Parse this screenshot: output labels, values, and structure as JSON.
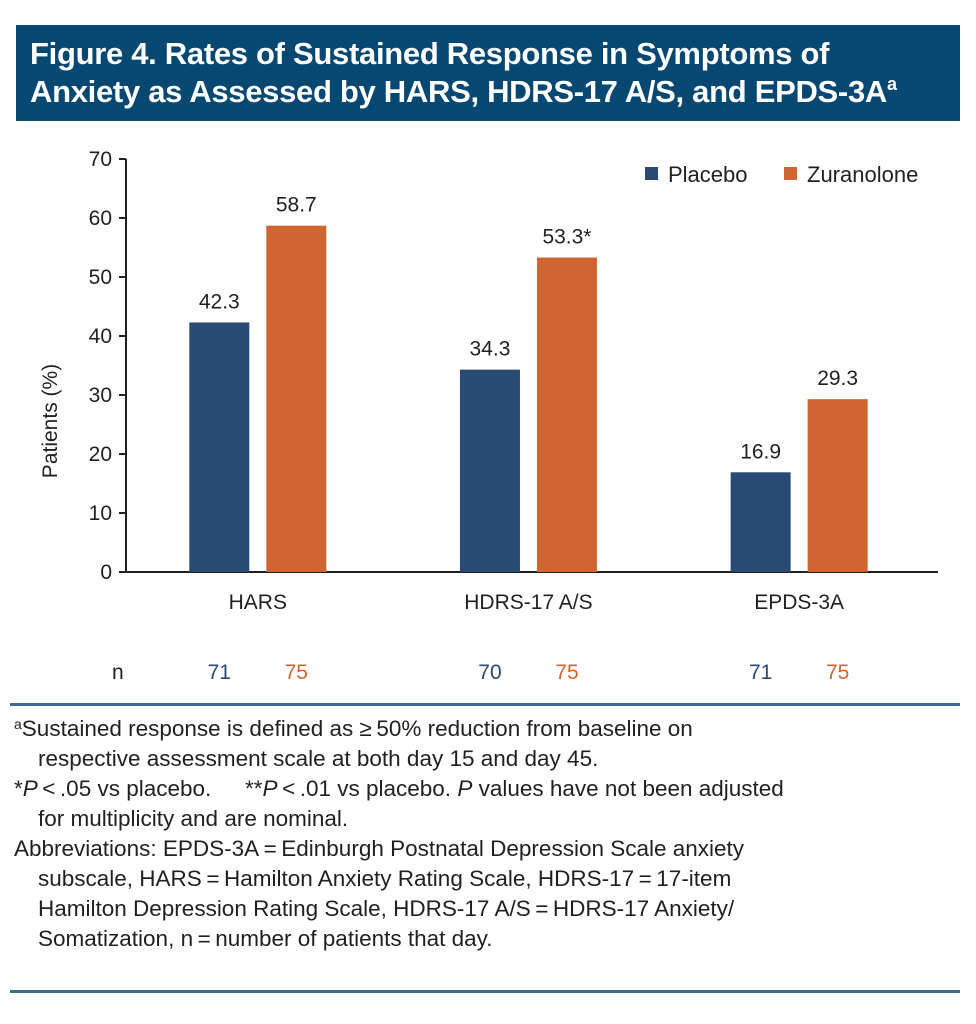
{
  "title": {
    "line1": "Figure 4. Rates of Sustained Response in Symptoms of",
    "line2": "Anxiety as Assessed by HARS, HDRS-17 A/S, and EPDS-3A",
    "superscript": "a"
  },
  "colors": {
    "title_bg": "#064872",
    "placebo": "#284a75",
    "zuranolone": "#d06532",
    "rule": "#3b6a93",
    "text": "#231f20"
  },
  "chart_data": {
    "type": "bar",
    "title": "Figure 4. Rates of Sustained Response in Symptoms of Anxiety as Assessed by HARS, HDRS-17 A/S, and EPDS-3A",
    "xlabel": "",
    "ylabel": "Patients (%)",
    "ylim": [
      0,
      70
    ],
    "yticks": [
      0,
      10,
      20,
      30,
      40,
      50,
      60,
      70
    ],
    "grid": false,
    "legend_position": "top-right",
    "categories": [
      "HARS",
      "HDRS-17 A/S",
      "EPDS-3A"
    ],
    "series": [
      {
        "name": "Placebo",
        "values": [
          42.3,
          34.3,
          16.9
        ],
        "labels": [
          "42.3",
          "34.3",
          "16.9"
        ],
        "n": [
          71,
          70,
          71
        ]
      },
      {
        "name": "Zuranolone",
        "values": [
          58.7,
          53.3,
          29.3
        ],
        "labels": [
          "58.7",
          "53.3*",
          "29.3"
        ],
        "n": [
          75,
          75,
          75
        ]
      }
    ],
    "n_row_label": "n"
  },
  "footnotes": {
    "a_sup": "a",
    "a_line1": "Sustained response is defined as ≥ 50% reduction from baseline on",
    "a_line2": "respective assessment scale at both day 15 and day 45.",
    "p_star": "*",
    "p_P1": "P",
    "p_text1": " < .05 vs placebo.  **",
    "p_P2": "P",
    "p_text2": " < .01 vs placebo. ",
    "p_P3": "P",
    "p_text3": " values have not been adjusted",
    "p_line2": "for multiplicity and are nominal.",
    "abbr_line1": "Abbreviations: EPDS-3A = Edinburgh Postnatal Depression Scale anxiety",
    "abbr_line2": "subscale, HARS = Hamilton Anxiety Rating Scale, HDRS-17 = 17-item",
    "abbr_line3": "Hamilton Depression Rating Scale, HDRS-17 A/S = HDRS-17 Anxiety/",
    "abbr_line4": "Somatization, n = number of patients that day."
  }
}
